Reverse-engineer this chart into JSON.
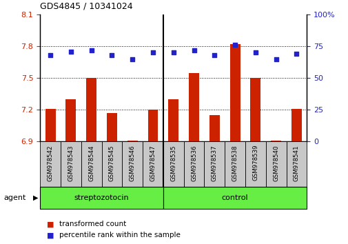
{
  "title": "GDS4845 / 10341024",
  "categories": [
    "GSM978542",
    "GSM978543",
    "GSM978544",
    "GSM978545",
    "GSM978546",
    "GSM978547",
    "GSM978535",
    "GSM978536",
    "GSM978537",
    "GSM978538",
    "GSM978539",
    "GSM978540",
    "GSM978541"
  ],
  "red_values": [
    7.21,
    7.3,
    7.5,
    7.17,
    6.91,
    7.2,
    7.3,
    7.55,
    7.15,
    7.82,
    7.5,
    6.91,
    7.21
  ],
  "blue_values": [
    68,
    71,
    72,
    68,
    65,
    70,
    70,
    72,
    68,
    76,
    70,
    65,
    69
  ],
  "ylim_left": [
    6.9,
    8.1
  ],
  "ylim_right": [
    0,
    100
  ],
  "yticks_left": [
    6.9,
    7.2,
    7.5,
    7.8,
    8.1
  ],
  "yticks_right": [
    0,
    25,
    50,
    75,
    100
  ],
  "group1_label": "streptozotocin",
  "group2_label": "control",
  "group1_count": 6,
  "group2_count": 7,
  "agent_label": "agent",
  "legend_red": "transformed count",
  "legend_blue": "percentile rank within the sample",
  "red_color": "#cc2200",
  "blue_color": "#2222cc",
  "bar_width": 0.5,
  "bg_plot": "#ffffff",
  "tick_label_bg": "#c8c8c8",
  "group_bg": "#66ee44"
}
